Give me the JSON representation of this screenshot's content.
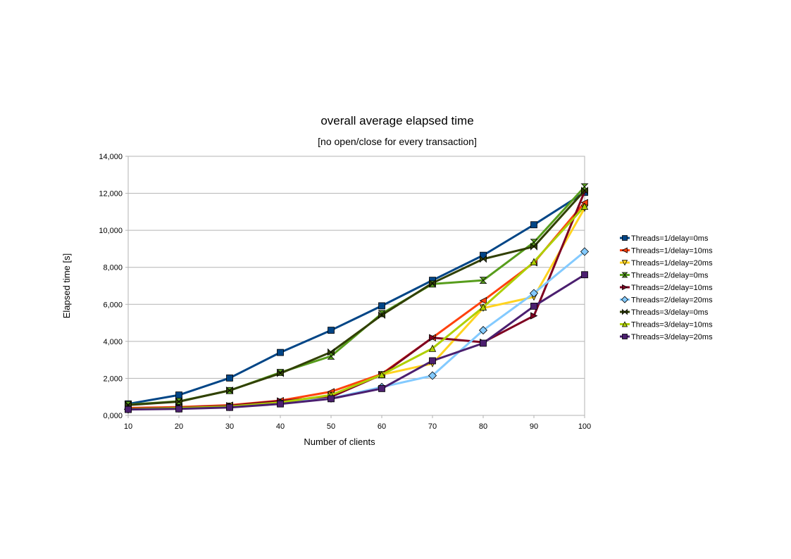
{
  "chart_data": {
    "type": "line",
    "title": "overall average elapsed time",
    "subtitle": "[no open/close for every transaction]",
    "xlabel": "Number of clients",
    "ylabel": "Elapsed time [s]",
    "ylim": [
      0,
      14000
    ],
    "ytick_values": [
      0,
      2000,
      4000,
      6000,
      8000,
      10000,
      12000,
      14000
    ],
    "ytick_labels": [
      "0,000",
      "2,000",
      "4,000",
      "6,000",
      "8,000",
      "10,000",
      "12,000",
      "14,000"
    ],
    "x": [
      10,
      20,
      30,
      40,
      50,
      60,
      70,
      80,
      90,
      100
    ],
    "x_tick_labels": [
      "10",
      "20",
      "30",
      "40",
      "50",
      "60",
      "70",
      "80",
      "90",
      "100"
    ],
    "grid": "horizontal",
    "legend_position": "right",
    "series": [
      {
        "name": "Threads=1/delay=0ms",
        "color": "#004586",
        "marker": "square",
        "values": [
          620,
          1100,
          2020,
          3400,
          4600,
          5920,
          7300,
          8650,
          10300,
          12050
        ]
      },
      {
        "name": "Threads=1/delay=10ms",
        "color": "#ff420e",
        "marker": "triangle-left",
        "values": [
          400,
          450,
          550,
          800,
          1280,
          2240,
          4200,
          6200,
          8250,
          11500
        ]
      },
      {
        "name": "Threads=1/delay=20ms",
        "color": "#ffd320",
        "marker": "triangle-down",
        "values": [
          350,
          400,
          500,
          650,
          1080,
          2200,
          2800,
          5800,
          6400,
          11200
        ]
      },
      {
        "name": "Threads=2/delay=0ms",
        "color": "#579d1c",
        "marker": "hourglass",
        "values": [
          580,
          760,
          1340,
          2320,
          3200,
          5500,
          7100,
          7300,
          9350,
          12350
        ]
      },
      {
        "name": "Threads=2/delay=10ms",
        "color": "#7e0021",
        "marker": "triangle-right",
        "values": [
          360,
          420,
          520,
          780,
          1000,
          2200,
          4200,
          3950,
          5380,
          12100
        ]
      },
      {
        "name": "Threads=2/delay=20ms",
        "color": "#83caff",
        "marker": "diamond",
        "values": [
          330,
          380,
          460,
          680,
          920,
          1530,
          2150,
          4600,
          6600,
          8850
        ]
      },
      {
        "name": "Threads=3/delay=0ms",
        "color": "#314004",
        "marker": "bowtie",
        "values": [
          560,
          740,
          1350,
          2270,
          3420,
          5420,
          7150,
          8450,
          9120,
          12150
        ]
      },
      {
        "name": "Threads=3/delay=10ms",
        "color": "#aecf00",
        "marker": "triangle-up",
        "values": [
          340,
          400,
          480,
          700,
          1100,
          2200,
          3620,
          5850,
          8300,
          11300
        ]
      },
      {
        "name": "Threads=3/delay=20ms",
        "color": "#4b1f6f",
        "marker": "square",
        "values": [
          320,
          350,
          430,
          620,
          900,
          1450,
          2950,
          3900,
          5900,
          7600
        ]
      }
    ]
  }
}
